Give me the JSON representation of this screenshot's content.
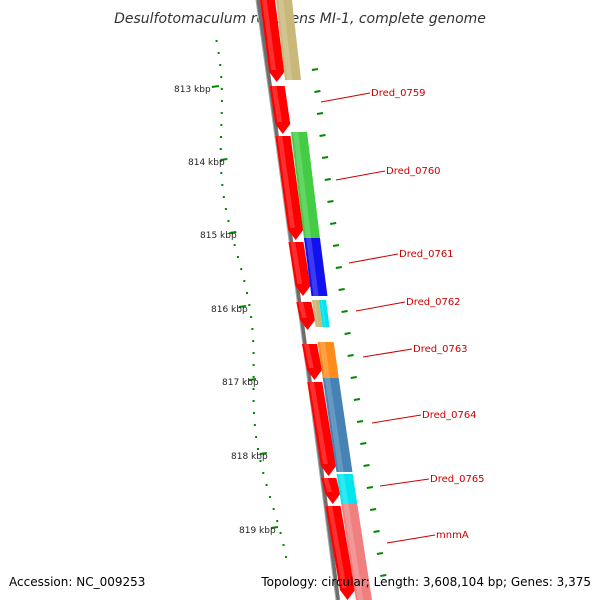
{
  "title": "Desulfotomaculum reducens MI-1, complete genome",
  "footer": {
    "accession": "Accession: NC_009253",
    "topology": "Topology: circular; Length: 3,608,104 bp; Genes: 3,375"
  },
  "kbp_labels": [
    "813 kbp",
    "814 kbp",
    "815 kbp",
    "816 kbp",
    "817 kbp",
    "818 kbp",
    "819 kbp"
  ],
  "gene_labels": [
    "Dred_0759",
    "Dred_0760",
    "Dred_0761",
    "Dred_0762",
    "Dred_0763",
    "Dred_0764",
    "Dred_0765",
    "mnmA"
  ],
  "colors": {
    "cds": "#ff0000",
    "backbone": "#777777",
    "gc_skew": "#008800",
    "label_red": "#cc0000",
    "khaki": "#c8b87a",
    "green": "#44cc44",
    "blue": "#1111ee",
    "cyan": "#00e5ee",
    "orange": "#ff8c1a",
    "steelblue": "#4682b4",
    "pink": "#f08080"
  }
}
